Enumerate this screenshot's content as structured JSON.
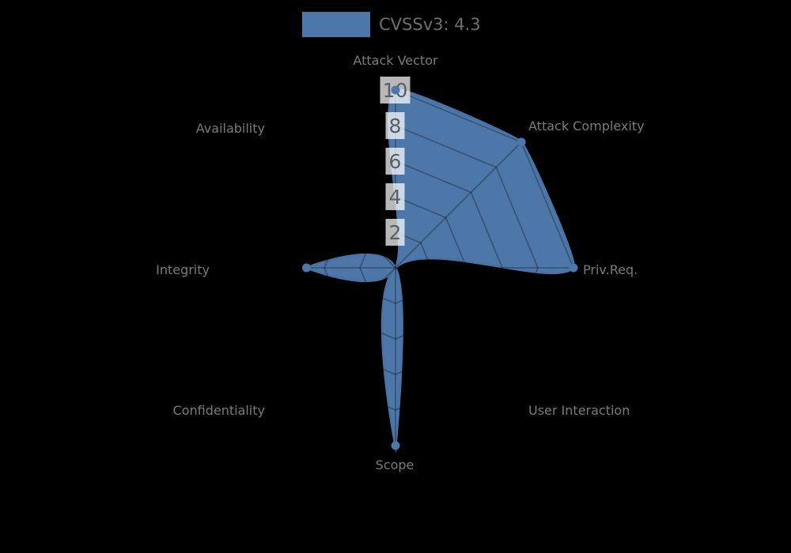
{
  "chart": {
    "legend_label": "CVSSv3: 4.3",
    "colors": {
      "background": "#000000",
      "fill": "#4d77a8",
      "stroke": "#4a73a3",
      "grid": "rgba(0,0,0,0.28)",
      "category_label": "#7a7a7a",
      "legend_text": "#6f6f6f",
      "tick_text": "#595f66",
      "tick_box": "rgba(255,255,255,0.72)"
    }
  },
  "chart_data": {
    "type": "radar",
    "title": "",
    "categories": [
      "Attack Vector",
      "Attack Complexity",
      "Priv.Req.",
      "User Interaction",
      "Scope",
      "Confidentiality",
      "Integrity",
      "Availability"
    ],
    "series": [
      {
        "name": "CVSSv3: 4.3",
        "values": [
          10,
          10,
          10,
          0,
          10,
          0,
          5,
          0
        ]
      }
    ],
    "radial_ticks": [
      2,
      4,
      6,
      8,
      10
    ],
    "rlim": [
      0,
      10
    ],
    "grid": true,
    "grid_shape": "polygon",
    "start_angle_deg": 90,
    "direction": "clockwise",
    "legend_position": "top-center"
  }
}
